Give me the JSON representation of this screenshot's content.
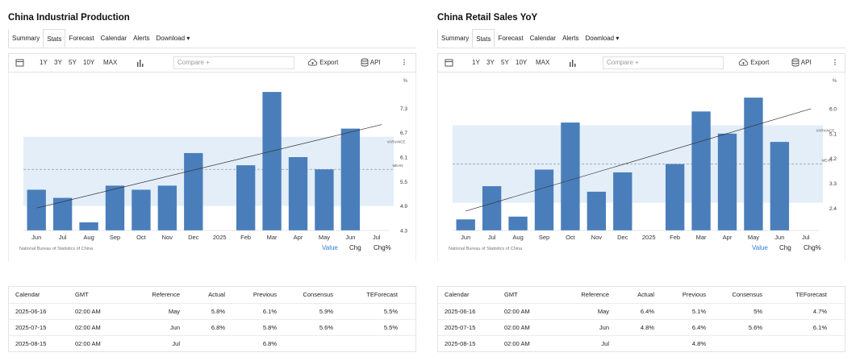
{
  "panels": [
    {
      "title": "China Industrial Production",
      "tabs": [
        "Summary",
        "Stats",
        "Forecast",
        "Calendar",
        "Alerts",
        "Download ▾"
      ],
      "active_tab": 1,
      "toolbar": {
        "ranges": [
          "1Y",
          "3Y",
          "5Y",
          "10Y",
          "MAX"
        ],
        "compare_placeholder": "Compare +",
        "export_label": "Export",
        "api_label": "API",
        "more": "⋮"
      },
      "source": "National Bureau of Statistics of China",
      "value_tabs": [
        "Value",
        "Chg",
        "Chg%"
      ],
      "table": {
        "headers": [
          "Calendar",
          "GMT",
          "Reference",
          "Actual",
          "Previous",
          "Consensus",
          "TEForecast"
        ],
        "rows": [
          [
            "2025-06-16",
            "02:00 AM",
            "May",
            "5.8%",
            "6.1%",
            "5.9%",
            "5.5%"
          ],
          [
            "2025-07-15",
            "02:00 AM",
            "Jun",
            "6.8%",
            "5.8%",
            "5.6%",
            "5.5%"
          ],
          [
            "2025-08-15",
            "02:00 AM",
            "Jul",
            "",
            "6.8%",
            "",
            ""
          ]
        ]
      },
      "chart_data": {
        "type": "bar",
        "categories": [
          "Jun",
          "Jul",
          "Aug",
          "Sep",
          "Oct",
          "Nov",
          "Dec",
          "2025",
          "Feb",
          "Mar",
          "Apr",
          "May",
          "Jun",
          "Jul"
        ],
        "values": [
          5.3,
          5.1,
          4.5,
          5.4,
          5.3,
          5.4,
          6.2,
          null,
          5.9,
          7.7,
          6.1,
          5.8,
          6.8,
          null
        ],
        "yticks": [
          4.3,
          4.9,
          5.5,
          6.1,
          6.7,
          7.3
        ],
        "yunit": "%",
        "ylim": [
          4.3,
          7.9
        ],
        "mean": 5.8,
        "mean_label": "MEAN",
        "variance_label": "VARIANCE",
        "variance_range": [
          4.9,
          6.6
        ],
        "trend": [
          4.85,
          6.9
        ],
        "bar_color": "#4a7ebb"
      }
    },
    {
      "title": "China Retail Sales YoY",
      "tabs": [
        "Summary",
        "Stats",
        "Forecast",
        "Calendar",
        "Alerts",
        "Download ▾"
      ],
      "active_tab": 1,
      "toolbar": {
        "ranges": [
          "1Y",
          "3Y",
          "5Y",
          "10Y",
          "MAX"
        ],
        "compare_placeholder": "Compare +",
        "export_label": "Export",
        "api_label": "API",
        "more": "⋮"
      },
      "source": "National Bureau of Statistics of China",
      "value_tabs": [
        "Value",
        "Chg",
        "Chg%"
      ],
      "table": {
        "headers": [
          "Calendar",
          "GMT",
          "Reference",
          "Actual",
          "Previous",
          "Consensus",
          "TEForecast"
        ],
        "rows": [
          [
            "2025-06-16",
            "02:00 AM",
            "May",
            "6.4%",
            "5.1%",
            "5%",
            "4.7%"
          ],
          [
            "2025-07-15",
            "02:00 AM",
            "Jun",
            "4.8%",
            "6.4%",
            "5.6%",
            "6.1%"
          ],
          [
            "2025-08-15",
            "02:00 AM",
            "Jul",
            "",
            "4.8%",
            "",
            ""
          ]
        ]
      },
      "chart_data": {
        "type": "bar",
        "categories": [
          "Jun",
          "Jul",
          "Aug",
          "Sep",
          "Oct",
          "Nov",
          "Dec",
          "2025",
          "Feb",
          "Mar",
          "Apr",
          "May",
          "Jun",
          "Jul"
        ],
        "values": [
          2.0,
          3.2,
          2.1,
          3.8,
          5.5,
          3.0,
          3.7,
          null,
          4.0,
          5.9,
          5.1,
          6.4,
          4.8,
          null
        ],
        "yticks": [
          2.4,
          3.3,
          4.2,
          5.1,
          6.0
        ],
        "yunit": "%",
        "ylim": [
          1.6,
          6.9
        ],
        "mean": 4.0,
        "mean_label": "MEAN",
        "variance_label": "VARIANCE",
        "variance_range": [
          2.6,
          5.4
        ],
        "trend": [
          2.3,
          6.0
        ],
        "bar_color": "#4a7ebb"
      }
    }
  ]
}
